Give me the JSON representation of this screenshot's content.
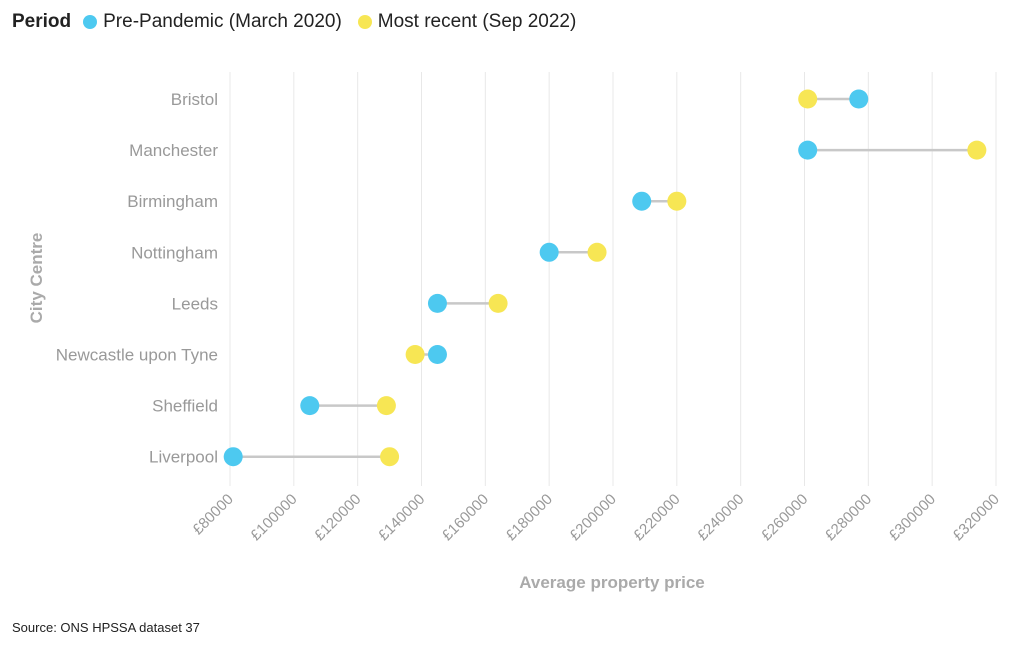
{
  "legend": {
    "title": "Period",
    "items": [
      {
        "label": "Pre-Pandemic (March 2020)",
        "color": "#4dc9f0"
      },
      {
        "label": "Most recent (Sep 2022)",
        "color": "#f7e654"
      }
    ]
  },
  "source": "Source: ONS HPSSA dataset 37",
  "chart_data": {
    "type": "dumbbell",
    "ylabel": "City Centre",
    "xlabel": "Average property price",
    "xlim": [
      80000,
      320000
    ],
    "xticks": [
      80000,
      100000,
      120000,
      140000,
      160000,
      180000,
      200000,
      220000,
      240000,
      260000,
      280000,
      300000,
      320000
    ],
    "tick_prefix": "£",
    "categories": [
      "Bristol",
      "Manchester",
      "Birmingham",
      "Nottingham",
      "Leeds",
      "Newcastle upon Tyne",
      "Sheffield",
      "Liverpool"
    ],
    "series": [
      {
        "name": "Pre-Pandemic (March 2020)",
        "color": "#4dc9f0",
        "values": [
          277000,
          261000,
          209000,
          180000,
          145000,
          145000,
          105000,
          81000
        ]
      },
      {
        "name": "Most recent (Sep 2022)",
        "color": "#f7e654",
        "values": [
          261000,
          314000,
          220000,
          195000,
          164000,
          138000,
          129000,
          130000
        ]
      }
    ],
    "connector_color": "#c8c8c8",
    "grid": true
  }
}
